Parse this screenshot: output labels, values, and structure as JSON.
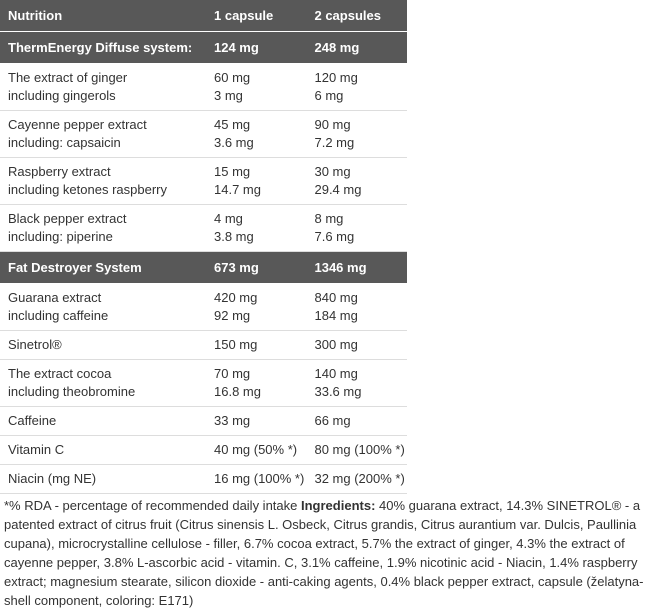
{
  "table": {
    "header": [
      "Nutrition",
      "1 capsule",
      "2 capsules"
    ],
    "sections": [
      {
        "row": [
          "ThermEnergy Diffuse system:",
          "124 mg",
          "248 mg"
        ],
        "items": [
          [
            [
              "The extract of ginger",
              "including gingerols"
            ],
            [
              "60 mg",
              "3 mg"
            ],
            [
              "120 mg",
              "6 mg"
            ]
          ],
          [
            [
              "Cayenne pepper extract",
              "including: capsaicin"
            ],
            [
              "45 mg",
              "3.6 mg"
            ],
            [
              "90 mg",
              "7.2 mg"
            ]
          ],
          [
            [
              "Raspberry extract",
              "including ketones raspberry"
            ],
            [
              "15 mg",
              "14.7 mg"
            ],
            [
              "30 mg",
              "29.4 mg"
            ]
          ],
          [
            [
              "Black pepper extract",
              "including: piperine"
            ],
            [
              "4 mg",
              "3.8 mg"
            ],
            [
              "8 mg",
              "7.6 mg"
            ]
          ]
        ]
      },
      {
        "row": [
          "Fat Destroyer System",
          "673 mg",
          "1346 mg"
        ],
        "items": [
          [
            [
              "Guarana extract",
              "including caffeine"
            ],
            [
              "420 mg",
              "92 mg"
            ],
            [
              "840 mg",
              "184 mg"
            ]
          ],
          [
            [
              "Sinetrol®"
            ],
            [
              "150 mg"
            ],
            [
              "300 mg"
            ]
          ],
          [
            [
              "The extract cocoa",
              "including theobromine"
            ],
            [
              "70 mg",
              "16.8 mg"
            ],
            [
              "140 mg",
              "33.6 mg"
            ]
          ],
          [
            [
              "Caffeine"
            ],
            [
              "33 mg"
            ],
            [
              "66 mg"
            ]
          ],
          [
            [
              "Vitamin C"
            ],
            [
              "40 mg (50% *)"
            ],
            [
              "80 mg (100% *)"
            ]
          ],
          [
            [
              "Niacin (mg NE)"
            ],
            [
              "16 mg (100% *)"
            ],
            [
              "32 mg (200% *)"
            ]
          ]
        ]
      }
    ]
  },
  "footnote": {
    "note": "*% RDA - percentage of recommended daily intake ",
    "label": "Ingredients:",
    "text": " 40% guarana extract, 14.3% SINETROL® - a patented extract of citrus fruit (Citrus sinensis L. Osbeck, Citrus grandis, Citrus aurantium var. Dulcis, Paullinia cupana), microcrystalline cellulose - filler, 6.7% cocoa extract, 5.7% the extract of ginger, 4.3% the extract of cayenne pepper, 3.8% L-ascorbic acid - vitamin. C, 3.1% caffeine, 1.9% nicotinic acid - Niacin, 1.4% raspberry extract; magnesium stearate, silicon dioxide - anti-caking agents, 0.4% black pepper extract, capsule (želatyna- shell component, coloring: E171)"
  }
}
